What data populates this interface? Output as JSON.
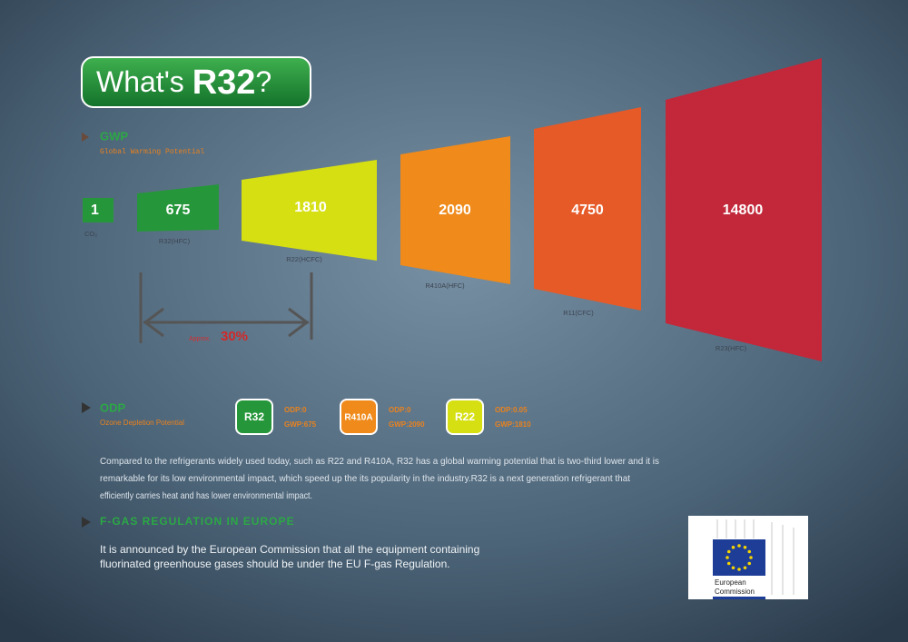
{
  "title": {
    "prefix": "What's",
    "name": "R32",
    "suffix": "?"
  },
  "gwp": {
    "heading": "GWP",
    "subtitle": "Global Warming Potential",
    "items": [
      {
        "value": 1,
        "label": "CO₂"
      },
      {
        "value": 675,
        "label": "R32(HFC)"
      },
      {
        "value": 1810,
        "label": "R22(HCFC)"
      },
      {
        "value": 2090,
        "label": "R410A(HFC)"
      },
      {
        "value": 4750,
        "label": "R11(CFC)"
      },
      {
        "value": 14800,
        "label": "R23(HFC)"
      }
    ],
    "comparison": {
      "prefix": "Approx.",
      "value": "30%"
    }
  },
  "odp": {
    "heading": "ODP",
    "subtitle": "Ozone Depletion Potential",
    "items": [
      {
        "name": "R32",
        "odp": "ODP:0",
        "gwp": "GWP:675"
      },
      {
        "name": "R410A",
        "odp": "ODP:0",
        "gwp": "GWP:2090"
      },
      {
        "name": "R22",
        "odp": "ODP:0.05",
        "gwp": "GWP:1810"
      }
    ]
  },
  "paragraph": [
    "Compared to the refrigerants widely used today, such as R22 and R410A, R32 has a global warming potential that is two-third lower and it is",
    "remarkable for its low environmental impact, which speed up the its popularity in the industry.R32 is a next generation refrigerant that",
    "efficiently carries heat and has lower environmental impact."
  ],
  "fgas": {
    "heading": "F-GAS REGULATION IN EUROPE",
    "text": [
      "It is announced by the European Commission that all the equipment containing",
      "fluorinated greenhouse gases should be under the EU F-gas Regulation."
    ]
  },
  "logo": {
    "lines": [
      "European",
      "Commission"
    ]
  }
}
